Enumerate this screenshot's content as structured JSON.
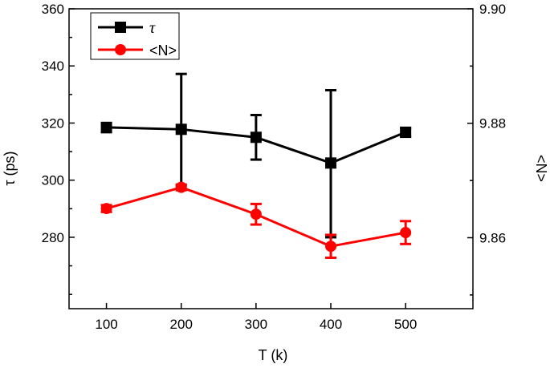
{
  "chart_data": {
    "type": "line",
    "x": [
      100,
      200,
      300,
      400,
      500
    ],
    "xlabel": "T (k)",
    "xlim": [
      50,
      590
    ],
    "xticks": [
      100,
      200,
      300,
      400,
      500
    ],
    "ylabel": "τ (ps)",
    "ylim": [
      255,
      360
    ],
    "yticks": [
      280,
      300,
      320,
      340,
      360
    ],
    "y2label": "<N>",
    "y2lim": [
      9.8476,
      9.9
    ],
    "y2ticks": [
      9.86,
      9.88,
      9.9
    ],
    "y2ticklabels": [
      "9.86",
      "9.88",
      "9.90"
    ],
    "grid": false,
    "legend": "top-left",
    "series": [
      {
        "name": "τ",
        "axis": "left",
        "color": "#000000",
        "marker": "square",
        "values": [
          318.5,
          317.8,
          315.0,
          306.0,
          316.8
        ],
        "err_low": [
          316.8,
          298.2,
          307.2,
          280.0,
          315.2
        ],
        "err_high": [
          320.0,
          337.2,
          322.8,
          331.5,
          318.2
        ]
      },
      {
        "name": "<N>",
        "axis": "right",
        "color": "#ff0000",
        "marker": "circle",
        "values": [
          9.8651,
          9.8688,
          9.8641,
          9.8585,
          9.8609
        ],
        "err_low": [
          9.8645,
          9.8683,
          9.8623,
          9.8565,
          9.8589
        ],
        "err_high": [
          9.8657,
          9.8693,
          9.8659,
          9.8605,
          9.8629
        ]
      }
    ]
  }
}
